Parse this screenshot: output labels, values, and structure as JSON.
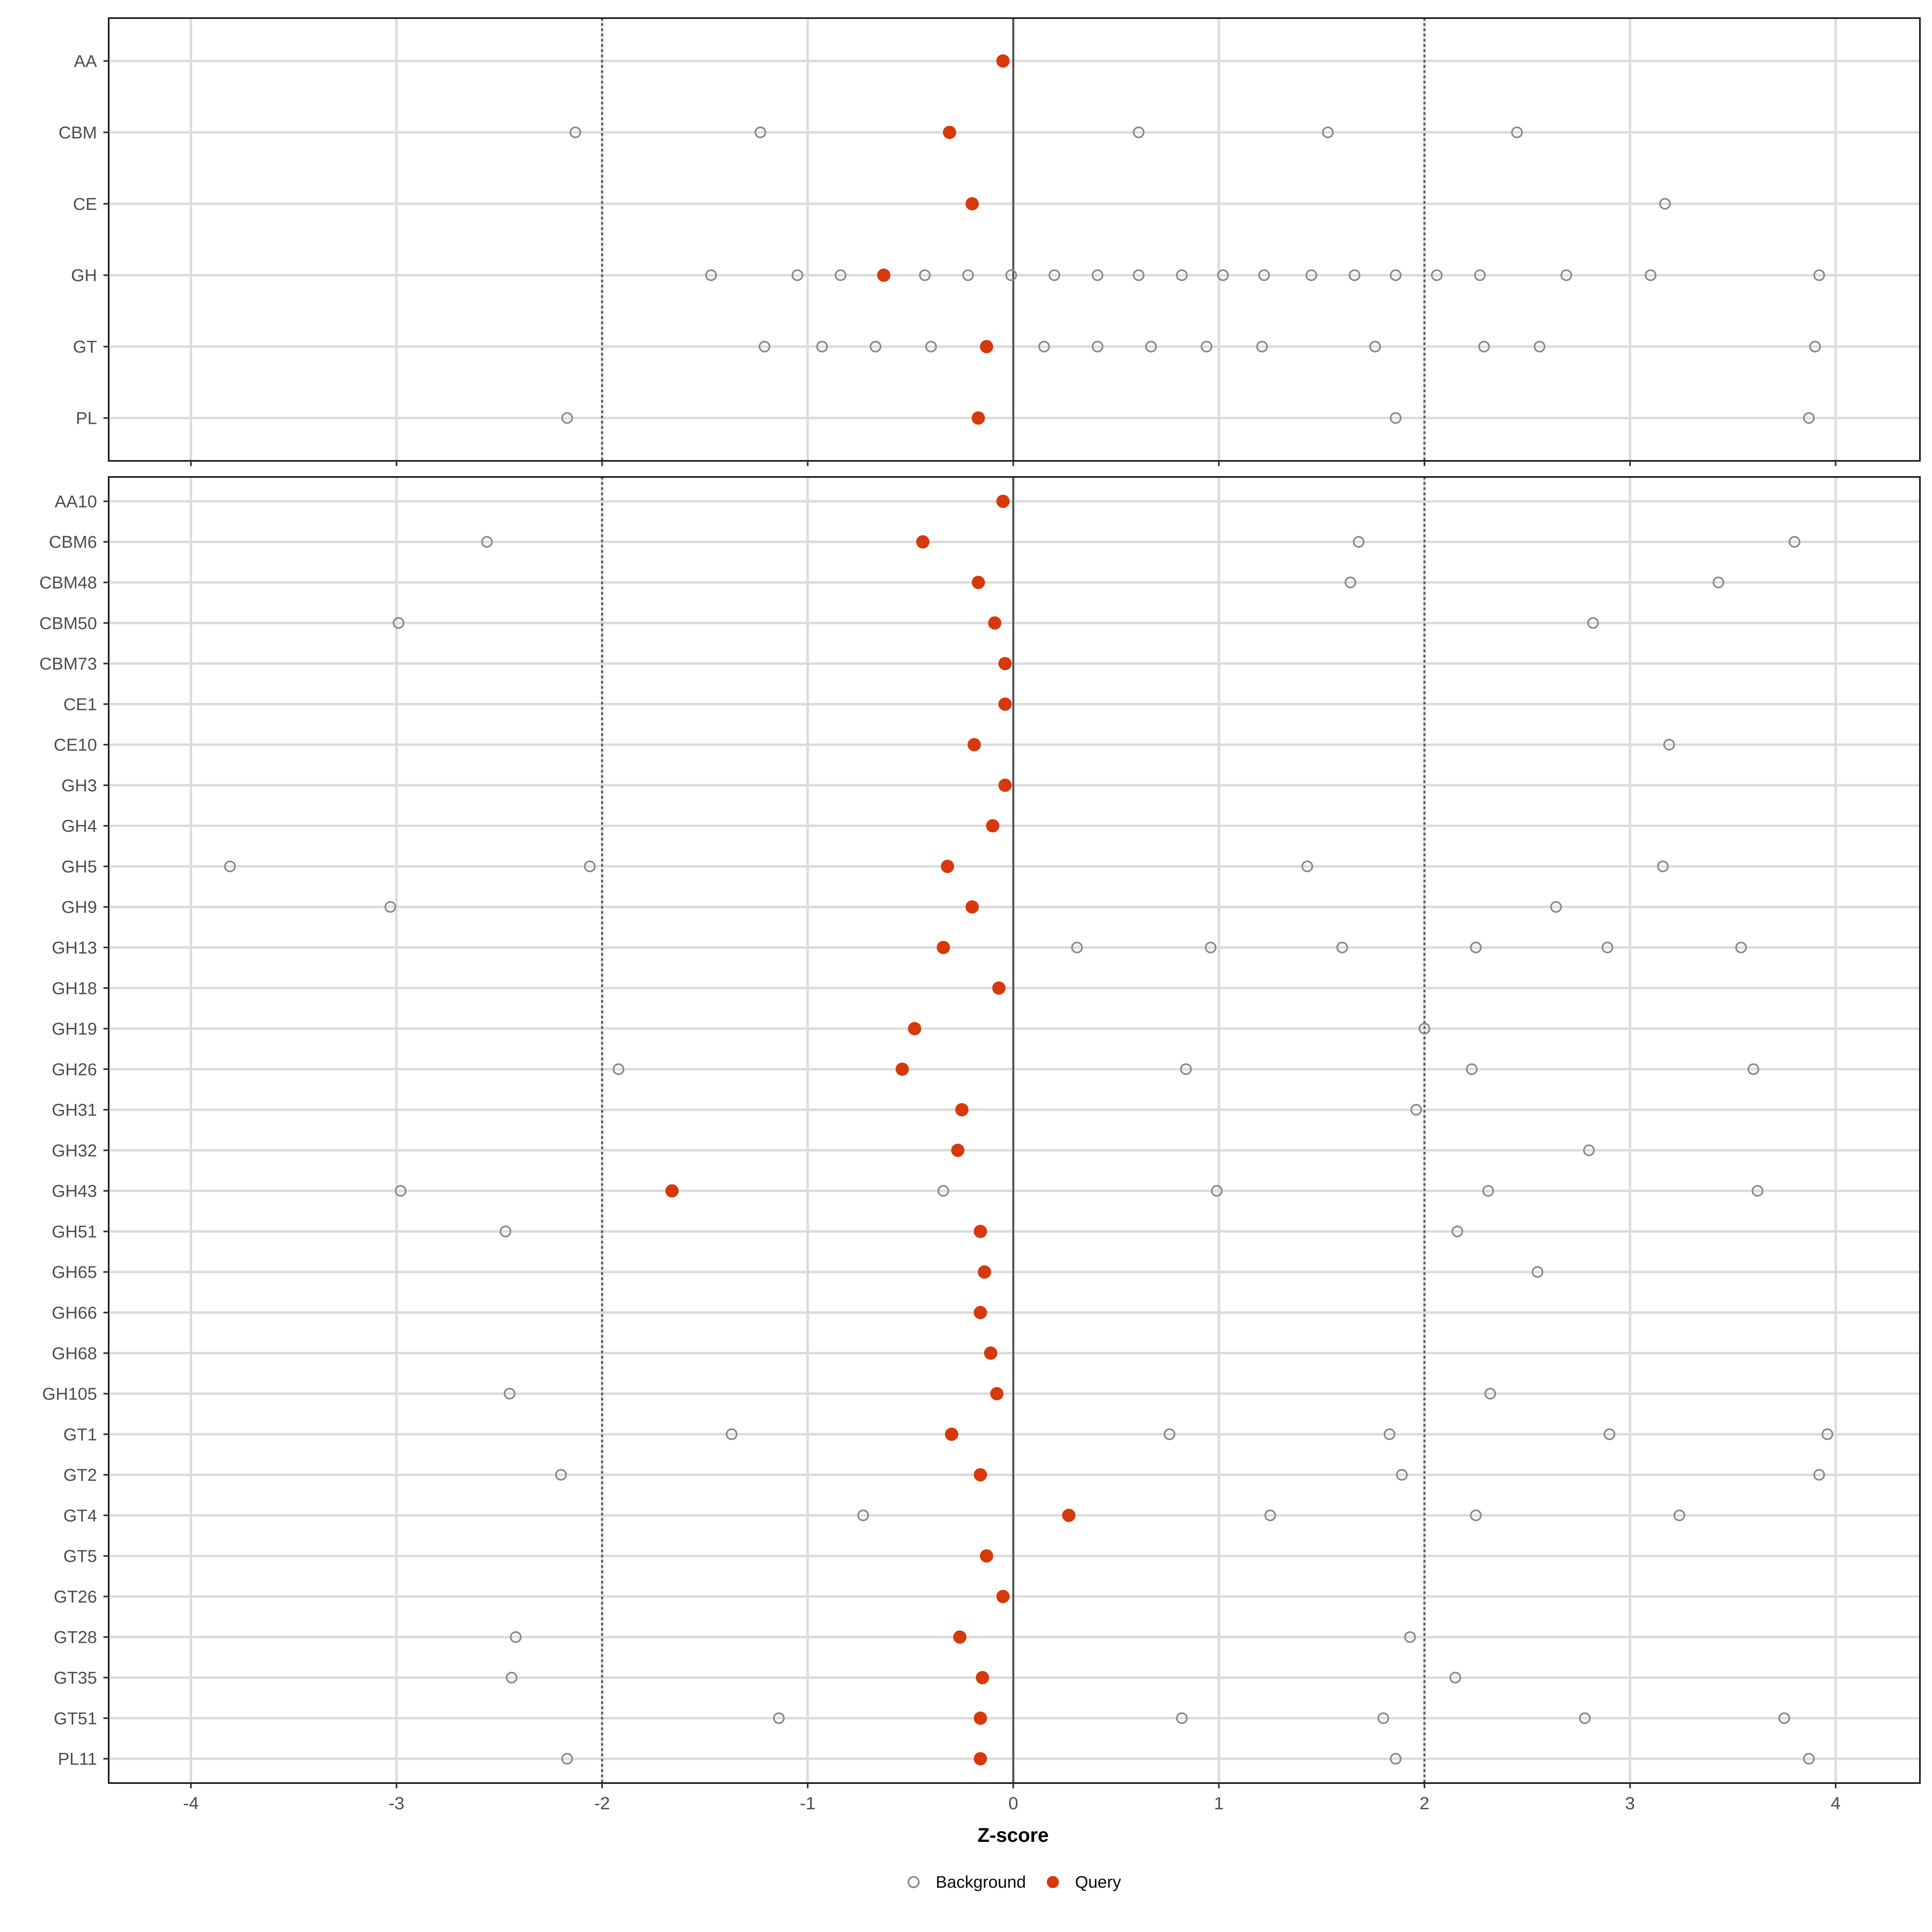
{
  "chart_data": {
    "type": "scatter",
    "title": "",
    "xlabel": "Z-score",
    "x_ticks": [
      -4,
      -3,
      -2,
      -1,
      0,
      1,
      2,
      3,
      4
    ],
    "x_range": [
      -4.4,
      4.41
    ],
    "grid": "on",
    "legend_position": "bottom",
    "reference_lines": {
      "solid_zero": 0,
      "dotted": [
        -2,
        2
      ]
    },
    "legend": [
      {
        "label": "Background",
        "marker": "open-circle"
      },
      {
        "label": "Query",
        "marker": "filled-dot"
      }
    ],
    "panels": [
      {
        "rows": [
          {
            "label": "AA",
            "query": -0.05,
            "background": []
          },
          {
            "label": "CBM",
            "query": -0.31,
            "background": [
              -2.13,
              -1.23,
              0.61,
              1.53,
              2.45
            ]
          },
          {
            "label": "CE",
            "query": -0.2,
            "background": [
              3.17
            ]
          },
          {
            "label": "GH",
            "query": -0.63,
            "background": [
              -1.47,
              -1.05,
              -0.84,
              -0.43,
              -0.22,
              -0.01,
              0.2,
              0.41,
              0.61,
              0.82,
              1.02,
              1.22,
              1.45,
              1.66,
              1.86,
              2.06,
              2.27,
              2.69,
              3.1,
              3.92
            ]
          },
          {
            "label": "GT",
            "query": -0.13,
            "background": [
              -1.21,
              -0.93,
              -0.67,
              -0.4,
              0.15,
              0.41,
              0.67,
              0.94,
              1.21,
              1.76,
              2.29,
              2.56,
              3.9
            ]
          },
          {
            "label": "PL",
            "query": -0.17,
            "background": [
              -2.17,
              1.86,
              3.87
            ]
          }
        ]
      },
      {
        "rows": [
          {
            "label": "AA10",
            "query": -0.05,
            "background": []
          },
          {
            "label": "CBM6",
            "query": -0.44,
            "background": [
              -2.56,
              1.68,
              3.8
            ]
          },
          {
            "label": "CBM48",
            "query": -0.17,
            "background": [
              1.64,
              3.43
            ]
          },
          {
            "label": "CBM50",
            "query": -0.09,
            "background": [
              -2.99,
              2.82
            ]
          },
          {
            "label": "CBM73",
            "query": -0.04,
            "background": []
          },
          {
            "label": "CE1",
            "query": -0.04,
            "background": []
          },
          {
            "label": "CE10",
            "query": -0.19,
            "background": [
              3.19
            ]
          },
          {
            "label": "GH3",
            "query": -0.04,
            "background": []
          },
          {
            "label": "GH4",
            "query": -0.1,
            "background": []
          },
          {
            "label": "GH5",
            "query": -0.32,
            "background": [
              -3.81,
              -2.06,
              1.43,
              3.16
            ]
          },
          {
            "label": "GH9",
            "query": -0.2,
            "background": [
              -3.03,
              2.64
            ]
          },
          {
            "label": "GH13",
            "query": -0.34,
            "background": [
              0.31,
              0.96,
              1.6,
              2.25,
              2.89,
              3.54
            ]
          },
          {
            "label": "GH18",
            "query": -0.07,
            "background": []
          },
          {
            "label": "GH19",
            "query": -0.48,
            "background": [
              2.0
            ]
          },
          {
            "label": "GH26",
            "query": -0.54,
            "background": [
              -1.92,
              0.84,
              2.23,
              3.6
            ]
          },
          {
            "label": "GH31",
            "query": -0.25,
            "background": [
              1.96
            ]
          },
          {
            "label": "GH32",
            "query": -0.27,
            "background": [
              2.8
            ]
          },
          {
            "label": "GH43",
            "query": -1.66,
            "background": [
              -2.98,
              -0.34,
              0.99,
              2.31,
              3.62
            ]
          },
          {
            "label": "GH51",
            "query": -0.16,
            "background": [
              -2.47,
              2.16
            ]
          },
          {
            "label": "GH65",
            "query": -0.14,
            "background": [
              2.55
            ]
          },
          {
            "label": "GH66",
            "query": -0.16,
            "background": []
          },
          {
            "label": "GH68",
            "query": -0.11,
            "background": []
          },
          {
            "label": "GH105",
            "query": -0.08,
            "background": [
              -2.45,
              2.32
            ]
          },
          {
            "label": "GT1",
            "query": -0.3,
            "background": [
              -1.37,
              0.76,
              1.83,
              2.9,
              3.96
            ]
          },
          {
            "label": "GT2",
            "query": -0.16,
            "background": [
              -2.2,
              1.89,
              3.92
            ]
          },
          {
            "label": "GT4",
            "query": 0.27,
            "background": [
              -0.73,
              1.25,
              2.25,
              3.24
            ]
          },
          {
            "label": "GT5",
            "query": -0.13,
            "background": []
          },
          {
            "label": "GT26",
            "query": -0.05,
            "background": []
          },
          {
            "label": "GT28",
            "query": -0.26,
            "background": [
              -2.42,
              1.93
            ]
          },
          {
            "label": "GT35",
            "query": -0.15,
            "background": [
              -2.44,
              2.15
            ]
          },
          {
            "label": "GT51",
            "query": -0.16,
            "background": [
              -1.14,
              0.82,
              1.8,
              2.78,
              3.75
            ]
          },
          {
            "label": "PL11",
            "query": -0.16,
            "background": [
              -2.17,
              1.86,
              3.87
            ]
          }
        ]
      }
    ]
  },
  "colors": {
    "query": "#D7380C",
    "background_stroke": "#888888",
    "grid": "#DBDBDB",
    "reference": "#555555",
    "axis_text": "#4D4D4D",
    "panel_border": "#1A1A1A",
    "tick": "#333333",
    "label_text": "#000000"
  }
}
